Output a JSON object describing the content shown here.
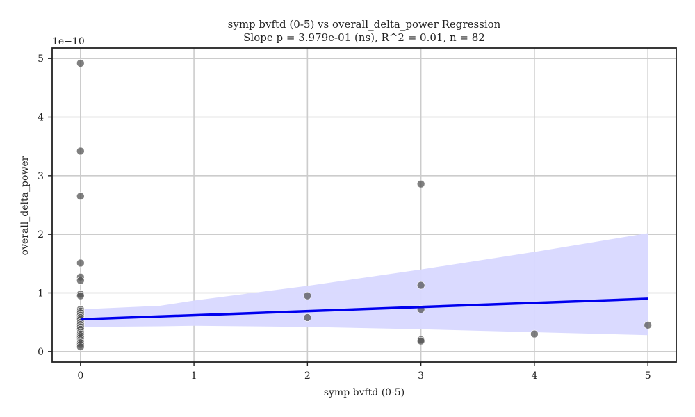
{
  "chart_data": {
    "type": "scatter",
    "title": "symp bvftd (0-5) vs overall_delta_power Regression",
    "subtitle": "Slope p = 3.979e-01 (ns), R^2 = 0.01, n = 82",
    "xlabel": "symp bvftd (0-5)",
    "ylabel": "overall_delta_power",
    "y_offset_label": "1e−10",
    "xlim": [
      -0.25,
      5.25
    ],
    "ylim": [
      -0.18,
      5.18
    ],
    "y_scale_note": "values in units of 1e-10",
    "x_ticks": [
      0,
      1,
      2,
      3,
      4,
      5
    ],
    "y_ticks": [
      0,
      1,
      2,
      3,
      4,
      5
    ],
    "grid": true,
    "points": [
      {
        "x": 0,
        "y": 4.92
      },
      {
        "x": 0,
        "y": 3.42
      },
      {
        "x": 0,
        "y": 2.65
      },
      {
        "x": 0,
        "y": 1.51
      },
      {
        "x": 0,
        "y": 1.27
      },
      {
        "x": 0,
        "y": 1.21
      },
      {
        "x": 0,
        "y": 0.98
      },
      {
        "x": 0,
        "y": 0.95
      },
      {
        "x": 0,
        "y": 0.72
      },
      {
        "x": 0,
        "y": 0.69
      },
      {
        "x": 0,
        "y": 0.66
      },
      {
        "x": 0,
        "y": 0.62
      },
      {
        "x": 0,
        "y": 0.58
      },
      {
        "x": 0,
        "y": 0.55
      },
      {
        "x": 0,
        "y": 0.5
      },
      {
        "x": 0,
        "y": 0.46
      },
      {
        "x": 0,
        "y": 0.42
      },
      {
        "x": 0,
        "y": 0.38
      },
      {
        "x": 0,
        "y": 0.33
      },
      {
        "x": 0,
        "y": 0.3
      },
      {
        "x": 0,
        "y": 0.27
      },
      {
        "x": 0,
        "y": 0.24
      },
      {
        "x": 0,
        "y": 0.2
      },
      {
        "x": 0,
        "y": 0.17
      },
      {
        "x": 0,
        "y": 0.15
      },
      {
        "x": 0,
        "y": 0.12
      },
      {
        "x": 0,
        "y": 0.08
      },
      {
        "x": 2,
        "y": 0.95
      },
      {
        "x": 2,
        "y": 0.58
      },
      {
        "x": 3,
        "y": 2.86
      },
      {
        "x": 3,
        "y": 1.13
      },
      {
        "x": 3,
        "y": 0.72
      },
      {
        "x": 3,
        "y": 0.2
      },
      {
        "x": 3,
        "y": 0.18
      },
      {
        "x": 4,
        "y": 0.3
      },
      {
        "x": 5,
        "y": 0.45
      }
    ],
    "regression": {
      "x": [
        0,
        5
      ],
      "y": [
        0.55,
        0.9
      ],
      "color": "#0000ee"
    },
    "confidence_band": {
      "x": [
        0,
        0.7,
        1,
        2,
        3,
        4,
        5
      ],
      "upper": [
        0.72,
        0.78,
        0.87,
        1.12,
        1.4,
        1.7,
        2.02
      ],
      "lower": [
        0.42,
        0.43,
        0.44,
        0.42,
        0.38,
        0.33,
        0.28
      ],
      "color": "#d8d8ff"
    },
    "point_color": "#555555"
  }
}
